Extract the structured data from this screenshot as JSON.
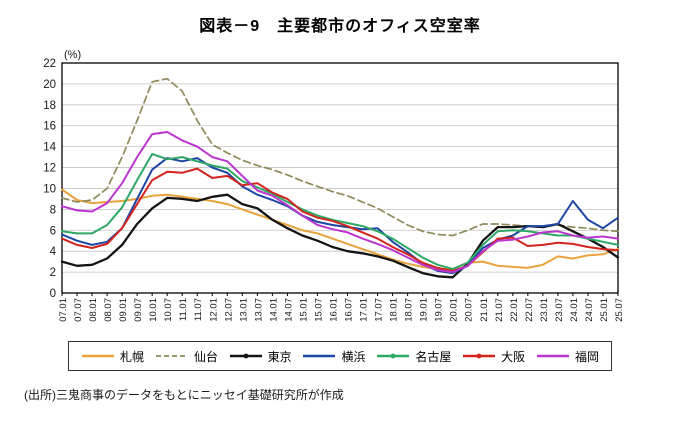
{
  "figure": {
    "title": "図表－9　主要都市のオフィス空室率",
    "unit_label": "(%)",
    "source": "(出所)三鬼商事のデータをもとにニッセイ基礎研究所が作成"
  },
  "chart_data": {
    "type": "line",
    "title": "図表－9　主要都市のオフィス空室率",
    "ylabel": "(%)",
    "ylim": [
      0,
      22
    ],
    "y_tick_step": 2,
    "grid": true,
    "legend_position": "bottom",
    "x_labels": [
      "07.01",
      "07.07",
      "08.01",
      "08.07",
      "09.01",
      "09.07",
      "10.01",
      "10.07",
      "11.01",
      "11.07",
      "12.01",
      "12.07",
      "13.01",
      "13.07",
      "14.01",
      "14.07",
      "15.01",
      "15.07",
      "16.01",
      "16.07",
      "17.01",
      "17.07",
      "18.01",
      "18.07",
      "19.01",
      "19.07",
      "20.01",
      "20.07",
      "21.01",
      "21.07",
      "22.01",
      "22.07",
      "23.01",
      "23.07",
      "24.01",
      "24.07",
      "25.01",
      "25.07"
    ],
    "series": [
      {
        "id": "sapporo",
        "name": "札幌",
        "color": "#E8A33D",
        "dash": false,
        "marker": false,
        "values": [
          9.9,
          8.9,
          8.6,
          8.7,
          8.8,
          9.0,
          9.3,
          9.4,
          9.2,
          9.0,
          8.8,
          8.5,
          8.0,
          7.5,
          7.0,
          6.5,
          6.0,
          5.7,
          5.2,
          4.7,
          4.2,
          3.7,
          3.2,
          2.8,
          2.5,
          2.3,
          2.3,
          2.9,
          3.0,
          2.6,
          2.5,
          2.4,
          2.7,
          3.5,
          3.3,
          3.6,
          3.7,
          4.2
        ]
      },
      {
        "id": "sendai",
        "name": "仙台",
        "color": "#8F8A5A",
        "dash": true,
        "marker": false,
        "values": [
          9.1,
          8.7,
          8.9,
          10.0,
          13.0,
          16.5,
          20.2,
          20.5,
          19.3,
          16.5,
          14.2,
          13.4,
          12.7,
          12.2,
          11.8,
          11.3,
          10.7,
          10.2,
          9.7,
          9.3,
          8.7,
          8.1,
          7.3,
          6.5,
          5.9,
          5.6,
          5.5,
          6.0,
          6.6,
          6.6,
          6.5,
          6.4,
          6.4,
          6.5,
          6.3,
          6.2,
          6.0,
          5.9
        ]
      },
      {
        "id": "tokyo",
        "name": "東京",
        "color": "#141414",
        "dash": false,
        "marker": true,
        "values": [
          3.0,
          2.6,
          2.7,
          3.3,
          4.6,
          6.6,
          8.1,
          9.1,
          9.0,
          8.8,
          9.2,
          9.4,
          8.5,
          8.1,
          7.0,
          6.2,
          5.5,
          5.0,
          4.4,
          4.0,
          3.8,
          3.5,
          3.1,
          2.5,
          1.9,
          1.6,
          1.5,
          2.8,
          5.0,
          6.3,
          6.3,
          6.4,
          6.3,
          6.6,
          5.9,
          5.2,
          4.4,
          3.4
        ]
      },
      {
        "id": "yokohama",
        "name": "横浜",
        "color": "#1E46A5",
        "dash": false,
        "marker": false,
        "values": [
          5.6,
          5.0,
          4.6,
          4.9,
          6.2,
          9.0,
          11.8,
          12.9,
          12.6,
          12.9,
          12.0,
          11.5,
          10.2,
          9.4,
          8.9,
          8.3,
          7.4,
          6.8,
          6.5,
          6.3,
          6.1,
          6.2,
          4.9,
          3.9,
          2.8,
          2.1,
          1.9,
          2.6,
          4.3,
          5.1,
          5.5,
          6.4,
          6.4,
          6.6,
          8.8,
          7.0,
          6.2,
          7.2
        ]
      },
      {
        "id": "nagoya",
        "name": "名古屋",
        "color": "#2FA865",
        "dash": false,
        "marker": true,
        "values": [
          5.9,
          5.7,
          5.7,
          6.5,
          8.2,
          10.8,
          13.3,
          12.8,
          13.0,
          12.6,
          12.2,
          11.9,
          10.7,
          10.1,
          9.5,
          8.7,
          8.0,
          7.4,
          7.0,
          6.7,
          6.4,
          5.9,
          5.2,
          4.3,
          3.4,
          2.7,
          2.3,
          2.9,
          4.6,
          5.9,
          6.0,
          5.9,
          5.7,
          5.5,
          5.5,
          5.2,
          4.9,
          4.6
        ]
      },
      {
        "id": "osaka",
        "name": "大阪",
        "color": "#D2231E",
        "dash": false,
        "marker": true,
        "values": [
          5.2,
          4.6,
          4.3,
          4.7,
          6.2,
          8.5,
          10.8,
          11.6,
          11.5,
          11.9,
          11.0,
          11.2,
          10.3,
          10.5,
          9.6,
          9.0,
          7.8,
          7.2,
          6.9,
          6.4,
          5.8,
          5.2,
          4.4,
          3.7,
          2.9,
          2.4,
          2.1,
          2.6,
          3.9,
          5.2,
          5.3,
          4.5,
          4.6,
          4.8,
          4.7,
          4.4,
          4.2,
          4.1
        ]
      },
      {
        "id": "fukuoka",
        "name": "福岡",
        "color": "#BB36CF",
        "dash": false,
        "marker": false,
        "values": [
          8.3,
          7.9,
          7.8,
          8.6,
          10.5,
          13.0,
          15.2,
          15.4,
          14.6,
          14.0,
          13.0,
          12.6,
          11.2,
          9.8,
          9.3,
          8.4,
          7.4,
          6.5,
          6.1,
          5.8,
          5.2,
          4.7,
          4.1,
          3.4,
          2.7,
          2.2,
          2.0,
          2.6,
          4.0,
          5.0,
          5.1,
          5.4,
          5.8,
          5.9,
          5.5,
          5.3,
          5.4,
          5.2
        ]
      }
    ]
  }
}
